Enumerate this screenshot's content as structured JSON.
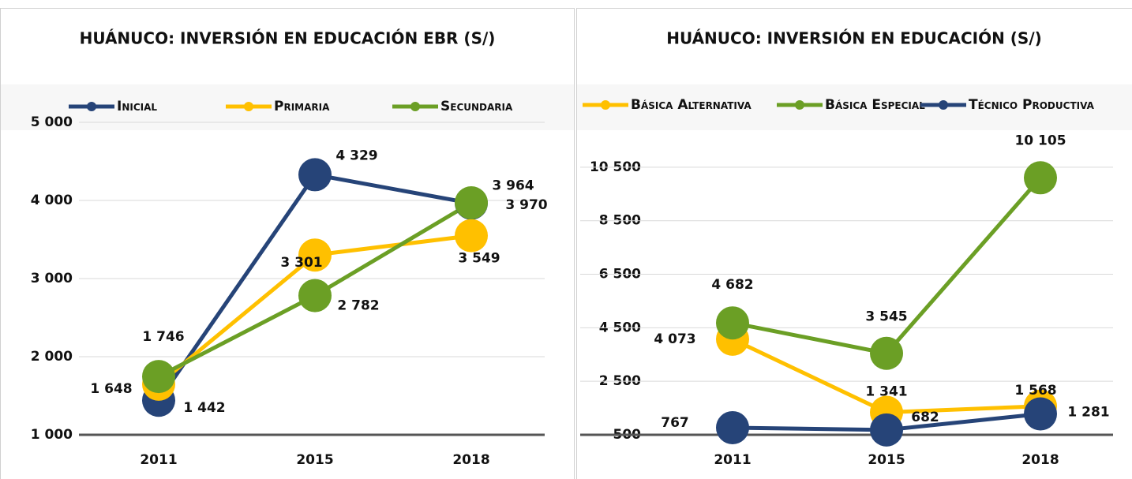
{
  "chart_data": [
    {
      "type": "line",
      "title": "HUÁNUCO: INVERSIÓN EN EDUCACIÓN EBR (S/)",
      "categories": [
        "2011",
        "2015",
        "2018"
      ],
      "series": [
        {
          "name": "Inicial",
          "color": "#264478",
          "values": [
            1442,
            4329,
            3964
          ],
          "value_labels": [
            "1 442",
            "4 329",
            "3 964"
          ]
        },
        {
          "name": "Primaria",
          "color": "#ffc000",
          "values": [
            1648,
            3301,
            3549
          ],
          "value_labels": [
            "1 648",
            "3 301",
            "3 549"
          ]
        },
        {
          "name": "Secundaria",
          "color": "#6b9f25",
          "values": [
            1746,
            2782,
            3970
          ],
          "value_labels": [
            "1 746",
            "2 782",
            "3 970"
          ]
        }
      ],
      "ylim": [
        1000,
        5000
      ],
      "yticks": [
        {
          "value": 1000,
          "label": "1 000"
        },
        {
          "value": 2000,
          "label": "2 000"
        },
        {
          "value": 3000,
          "label": "3 000"
        },
        {
          "value": 4000,
          "label": "4 000"
        },
        {
          "value": 5000,
          "label": "5 000"
        }
      ],
      "grid": true,
      "legend": "top"
    },
    {
      "type": "line",
      "title": "HUÁNUCO: INVERSIÓN EN EDUCACIÓN (S/)",
      "categories": [
        "2011",
        "2015",
        "2018"
      ],
      "series": [
        {
          "name": "Básica Alternativa",
          "color": "#ffc000",
          "values": [
            4073,
            1341,
            1568
          ],
          "value_labels": [
            "4 073",
            "1 341",
            "1 568"
          ]
        },
        {
          "name": "Básica Especial",
          "color": "#6b9f25",
          "values": [
            4682,
            3545,
            10105
          ],
          "value_labels": [
            "4 682",
            "3 545",
            "10 105"
          ]
        },
        {
          "name": "Técnico Productiva",
          "color": "#264478",
          "values": [
            767,
            682,
            1281
          ],
          "value_labels": [
            "767",
            "682",
            "1 281"
          ]
        }
      ],
      "ylim": [
        500,
        11500
      ],
      "yticks": [
        500,
        {
          "value": 2500,
          "label": "2 500"
        },
        {
          "value": 4500,
          "label": "4 500"
        },
        {
          "value": 6500,
          "label": "6 500"
        },
        {
          "value": 8500,
          "label": "8 500"
        },
        {
          "value": 10500,
          "label": "10 500"
        }
      ],
      "grid": true,
      "legend": "top"
    }
  ]
}
